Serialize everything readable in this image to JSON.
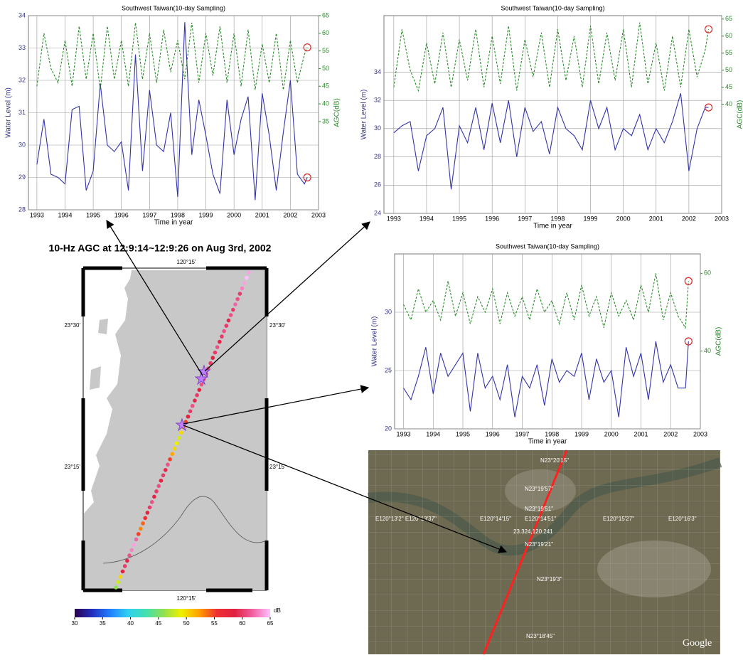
{
  "chart_data": [
    {
      "type": "line",
      "title": "Southwest Taiwan(10-day Sampling)",
      "x_label": "Time in year",
      "y_label": "Water Level (m)",
      "y2_label": "AGC(dB)",
      "grid": true,
      "xlim": [
        1992.7,
        2003
      ],
      "xticks": [
        1993,
        1994,
        1995,
        1996,
        1997,
        1998,
        1999,
        2000,
        2001,
        2002,
        2003
      ],
      "ylim": [
        28,
        34
      ],
      "yticks": [
        28,
        29,
        30,
        31,
        32,
        33,
        34
      ],
      "y2lim": [
        10,
        65
      ],
      "y2ticks": [
        35,
        40,
        45,
        50,
        55,
        60,
        65
      ],
      "x": [
        1993,
        1993.25,
        1993.5,
        1993.75,
        1994,
        1994.25,
        1994.5,
        1994.75,
        1995,
        1995.25,
        1995.5,
        1995.75,
        1996,
        1996.25,
        1996.5,
        1996.75,
        1997,
        1997.25,
        1997.5,
        1997.75,
        1998,
        1998.25,
        1998.5,
        1998.75,
        1999,
        1999.25,
        1999.5,
        1999.75,
        2000,
        2000.25,
        2000.5,
        2000.75,
        2001,
        2001.25,
        2001.5,
        2001.75,
        2002,
        2002.25,
        2002.5,
        2002.6
      ],
      "series": [
        {
          "name": "Water Level",
          "color": "#3333aa",
          "values": [
            29.4,
            30.8,
            29.1,
            29.0,
            28.8,
            31.1,
            31.2,
            28.6,
            29.2,
            31.9,
            30.0,
            29.8,
            30.1,
            28.6,
            32.8,
            29.2,
            31.7,
            30.0,
            29.8,
            31.0,
            28.4,
            33.8,
            29.7,
            31.4,
            30.3,
            29.1,
            28.5,
            31.4,
            29.7,
            30.8,
            31.5,
            28.3,
            31.6,
            30.3,
            28.6,
            30.4,
            32.0,
            29.1,
            28.8,
            29.0
          ]
        },
        {
          "name": "AGC",
          "color": "#2a8a2a",
          "axis": "y2",
          "values": [
            45,
            60,
            50,
            46,
            58,
            45,
            62,
            47,
            60,
            44,
            62,
            47,
            58,
            45,
            63,
            47,
            60,
            46,
            61,
            49,
            58,
            47,
            63,
            46,
            60,
            48,
            62,
            46,
            60,
            45,
            61,
            44,
            57,
            46,
            60,
            44,
            58,
            46,
            54,
            56
          ]
        }
      ]
    },
    {
      "type": "line",
      "title": "Southwest Taiwan(10-day Sampling)",
      "x_label": "Time in year",
      "y_label": "Water Level (m)",
      "y2_label": "AGC(dB)",
      "grid": true,
      "xlim": [
        1992.7,
        2003
      ],
      "xticks": [
        1993,
        1994,
        1995,
        1996,
        1997,
        1998,
        1999,
        2000,
        2001,
        2002,
        2003
      ],
      "ylim": [
        24,
        38
      ],
      "yticks": [
        24,
        26,
        28,
        30,
        32,
        34
      ],
      "y2lim": [
        8,
        66
      ],
      "y2ticks": [
        40,
        45,
        50,
        55,
        60,
        65
      ],
      "x": [
        1993,
        1993.25,
        1993.5,
        1993.75,
        1994,
        1994.25,
        1994.5,
        1994.75,
        1995,
        1995.25,
        1995.5,
        1995.75,
        1996,
        1996.25,
        1996.5,
        1996.75,
        1997,
        1997.25,
        1997.5,
        1997.75,
        1998,
        1998.25,
        1998.5,
        1998.75,
        1999,
        1999.25,
        1999.5,
        1999.75,
        2000,
        2000.25,
        2000.5,
        2000.75,
        2001,
        2001.25,
        2001.5,
        2001.75,
        2002,
        2002.25,
        2002.5,
        2002.6
      ],
      "series": [
        {
          "name": "Water Level",
          "color": "#3333aa",
          "values": [
            29.7,
            30.2,
            30.5,
            27.0,
            29.5,
            30.0,
            31.5,
            25.7,
            30.2,
            29.0,
            31.5,
            28.5,
            31.8,
            29.0,
            32.0,
            28.0,
            31.5,
            29.8,
            30.5,
            28.2,
            31.5,
            30.0,
            29.5,
            28.5,
            32.0,
            30.0,
            31.5,
            28.5,
            30.0,
            29.5,
            31.0,
            28.5,
            30.0,
            29.0,
            30.5,
            32.5,
            27.0,
            30.0,
            31.5,
            31.5
          ]
        },
        {
          "name": "AGC",
          "color": "#2a8a2a",
          "axis": "y2",
          "values": [
            45,
            62,
            50,
            44,
            58,
            46,
            61,
            45,
            59,
            47,
            62,
            45,
            60,
            46,
            63,
            44,
            59,
            48,
            61,
            45,
            62,
            47,
            60,
            45,
            63,
            46,
            61,
            47,
            62,
            45,
            64,
            46,
            58,
            44,
            60,
            45,
            62,
            48,
            56,
            62
          ]
        }
      ]
    },
    {
      "type": "line",
      "title": "Southwest Taiwan(10-day Sampling)",
      "x_label": "Time in year",
      "y_label": "Water Level (m)",
      "y2_label": "AGC(dB)",
      "grid": true,
      "xlim": [
        1992.7,
        2003
      ],
      "xticks": [
        1993,
        1994,
        1995,
        1996,
        1997,
        1998,
        1999,
        2000,
        2001,
        2002,
        2003
      ],
      "ylim": [
        20,
        35
      ],
      "yticks": [
        20,
        25,
        30
      ],
      "y2lim": [
        20,
        65
      ],
      "y2ticks": [
        40,
        60
      ],
      "x": [
        1993,
        1993.25,
        1993.5,
        1993.75,
        1994,
        1994.25,
        1994.5,
        1994.75,
        1995,
        1995.25,
        1995.5,
        1995.75,
        1996,
        1996.25,
        1996.5,
        1996.75,
        1997,
        1997.25,
        1997.5,
        1997.75,
        1998,
        1998.25,
        1998.5,
        1998.75,
        1999,
        1999.25,
        1999.5,
        1999.75,
        2000,
        2000.25,
        2000.5,
        2000.75,
        2001,
        2001.25,
        2001.5,
        2001.75,
        2002,
        2002.25,
        2002.5,
        2002.6
      ],
      "series": [
        {
          "name": "Water Level",
          "color": "#3333aa",
          "values": [
            23.5,
            22.5,
            24.5,
            27.0,
            23.0,
            26.5,
            24.5,
            25.5,
            26.5,
            21.5,
            26.5,
            23.5,
            24.5,
            22.5,
            25.5,
            21.0,
            24.5,
            23.5,
            25.5,
            22.0,
            26.0,
            24.0,
            25.0,
            24.5,
            26.5,
            22.5,
            26.0,
            24.0,
            25.0,
            21.0,
            27.0,
            24.5,
            26.5,
            22.5,
            27.5,
            24.0,
            25.5,
            23.5,
            23.5,
            27.5
          ]
        },
        {
          "name": "AGC",
          "color": "#2a8a2a",
          "axis": "y2",
          "values": [
            52,
            48,
            56,
            50,
            53,
            48,
            58,
            49,
            55,
            47,
            54,
            50,
            56,
            47,
            55,
            49,
            54,
            48,
            56,
            50,
            53,
            47,
            55,
            48,
            57,
            49,
            54,
            46,
            55,
            49,
            53,
            48,
            57,
            50,
            60,
            48,
            55,
            49,
            46,
            58
          ]
        }
      ]
    }
  ],
  "map": {
    "title": "10-Hz AGC at 12:9:14~12:9:26 on Aug 3rd, 2002",
    "lon_labels": [
      "120°15'",
      "120°15'"
    ],
    "lat_labels": [
      "23°30'",
      "23°30'",
      "23°15'",
      "23°15'"
    ],
    "track_db": [
      46,
      48,
      50,
      58,
      60,
      59,
      61,
      63,
      64,
      62,
      55,
      53,
      54,
      56,
      58,
      60,
      61,
      59,
      60,
      61,
      58,
      60,
      59,
      61,
      55,
      52,
      50,
      49,
      48,
      50,
      52,
      55,
      58,
      60,
      61,
      59,
      60,
      58,
      61,
      60,
      59,
      61,
      60,
      58,
      60,
      61,
      59,
      60,
      61,
      60,
      59,
      61,
      60,
      62,
      61,
      60,
      63,
      64,
      65,
      64
    ]
  },
  "colorbar": {
    "range": [
      30,
      65
    ],
    "ticks": [
      30,
      35,
      40,
      45,
      50,
      55,
      60,
      65
    ],
    "unit": "dB",
    "colors": [
      "#2a0050",
      "#2030c0",
      "#2080ff",
      "#30d0f0",
      "#40e0b0",
      "#90e050",
      "#f0f000",
      "#ffa000",
      "#f03030",
      "#e02040",
      "#f060a0",
      "#ffc0ff"
    ]
  },
  "satellite": {
    "labels": [
      "N23°20'15\"",
      "N23°19'57\"",
      "N23°19'51\"",
      "E120°13'2\" E120°13'37\"",
      "E120°14'15\"",
      "E120°14'51\"",
      "E120°15'27\"",
      "E120°16'3\"",
      "23.324,120.241",
      "N23°19'21\"",
      "N23°19'3\"",
      "N23°18'45\"",
      "Google"
    ]
  }
}
